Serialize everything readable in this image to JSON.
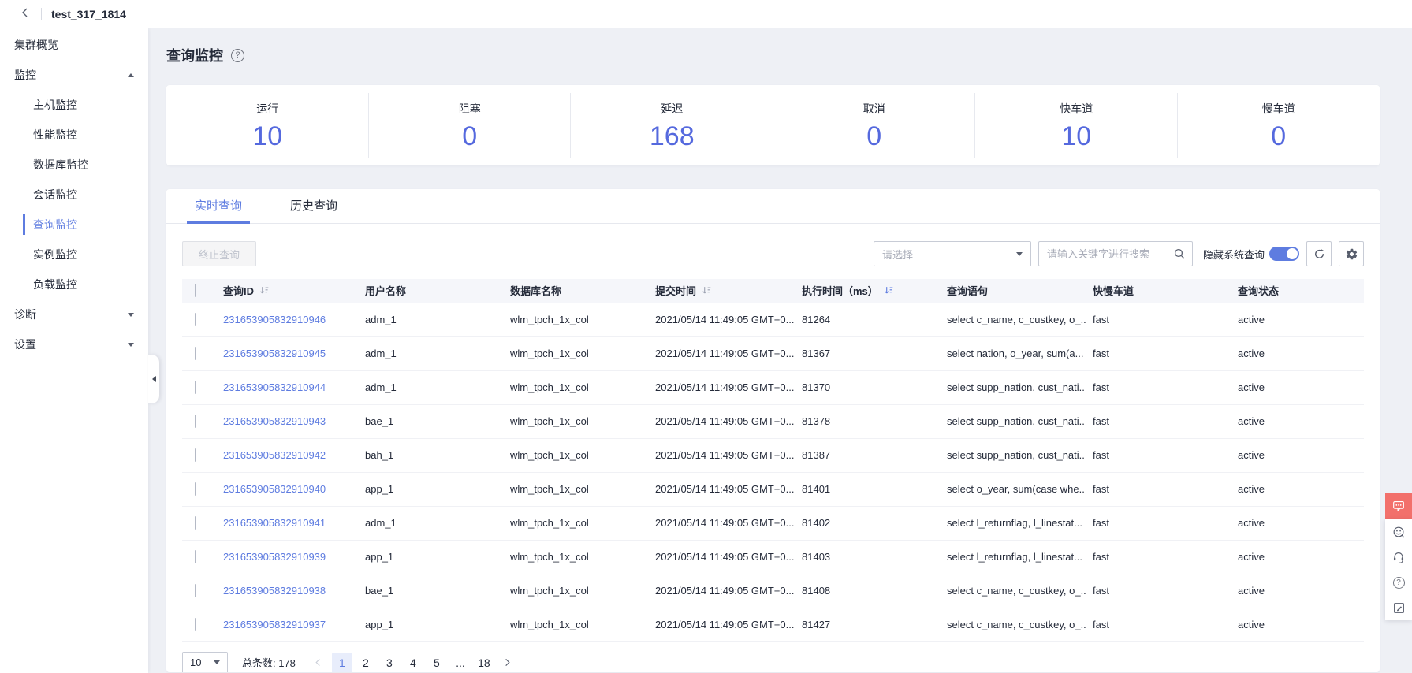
{
  "topbar": {
    "title": "test_317_1814"
  },
  "sidebar": {
    "overview": {
      "key": "cluster-overview",
      "label": "集群概览"
    },
    "groups": [
      {
        "key": "monitoring",
        "label": "监控",
        "expanded": true,
        "children": [
          {
            "key": "host-monitoring",
            "label": "主机监控",
            "active": false
          },
          {
            "key": "performance-monitoring",
            "label": "性能监控",
            "active": false
          },
          {
            "key": "database-monitoring",
            "label": "数据库监控",
            "active": false
          },
          {
            "key": "session-monitoring",
            "label": "会话监控",
            "active": false
          },
          {
            "key": "query-monitoring",
            "label": "查询监控",
            "active": true
          },
          {
            "key": "instance-monitoring",
            "label": "实例监控",
            "active": false
          },
          {
            "key": "load-monitoring",
            "label": "负载监控",
            "active": false
          }
        ]
      },
      {
        "key": "diagnosis",
        "label": "诊断",
        "expanded": false,
        "children": []
      },
      {
        "key": "settings",
        "label": "设置",
        "expanded": false,
        "children": []
      }
    ]
  },
  "page": {
    "title": "查询监控",
    "help_glyph": "?"
  },
  "stats": [
    {
      "key": "running",
      "label": "运行",
      "value": "10"
    },
    {
      "key": "blocked",
      "label": "阻塞",
      "value": "0"
    },
    {
      "key": "delayed",
      "label": "延迟",
      "value": "168"
    },
    {
      "key": "canceled",
      "label": "取消",
      "value": "0"
    },
    {
      "key": "fast-lane",
      "label": "快车道",
      "value": "10"
    },
    {
      "key": "slow-lane",
      "label": "慢车道",
      "value": "0"
    }
  ],
  "tabs": [
    {
      "key": "realtime-query",
      "label": "实时查询",
      "active": true
    },
    {
      "key": "history-query",
      "label": "历史查询",
      "active": false
    }
  ],
  "toolbar": {
    "terminate_button": "终止查询",
    "filter_placeholder": "请选择",
    "search_placeholder": "请输入关键字进行搜索",
    "hide_system_label": "隐藏系统查询",
    "hide_system_on": true
  },
  "table": {
    "columns": [
      {
        "key": "query-id",
        "label": "查询ID",
        "sortable": true,
        "sort_active": false
      },
      {
        "key": "user-name",
        "label": "用户名称",
        "sortable": false
      },
      {
        "key": "database-name",
        "label": "数据库名称",
        "sortable": false
      },
      {
        "key": "submit-time",
        "label": "提交时间",
        "sortable": true,
        "sort_active": false
      },
      {
        "key": "execution-time",
        "label": "执行时间（ms）",
        "sortable": true,
        "sort_active": true
      },
      {
        "key": "query-statement",
        "label": "查询语句",
        "sortable": false
      },
      {
        "key": "lane",
        "label": "快慢车道",
        "sortable": false
      },
      {
        "key": "query-status",
        "label": "查询状态",
        "sortable": false
      }
    ],
    "rows": [
      {
        "id": "231653905832910946",
        "user": "adm_1",
        "db": "wlm_tpch_1x_col",
        "submitted": "2021/05/14 11:49:05 GMT+0...",
        "exec_ms": "81264",
        "statement": "select c_name, c_custkey, o_...",
        "lane": "fast",
        "status": "active"
      },
      {
        "id": "231653905832910945",
        "user": "adm_1",
        "db": "wlm_tpch_1x_col",
        "submitted": "2021/05/14 11:49:05 GMT+0...",
        "exec_ms": "81367",
        "statement": "select nation, o_year, sum(a...",
        "lane": "fast",
        "status": "active"
      },
      {
        "id": "231653905832910944",
        "user": "adm_1",
        "db": "wlm_tpch_1x_col",
        "submitted": "2021/05/14 11:49:05 GMT+0...",
        "exec_ms": "81370",
        "statement": "select supp_nation, cust_nati...",
        "lane": "fast",
        "status": "active"
      },
      {
        "id": "231653905832910943",
        "user": "bae_1",
        "db": "wlm_tpch_1x_col",
        "submitted": "2021/05/14 11:49:05 GMT+0...",
        "exec_ms": "81378",
        "statement": "select supp_nation, cust_nati...",
        "lane": "fast",
        "status": "active"
      },
      {
        "id": "231653905832910942",
        "user": "bah_1",
        "db": "wlm_tpch_1x_col",
        "submitted": "2021/05/14 11:49:05 GMT+0...",
        "exec_ms": "81387",
        "statement": "select supp_nation, cust_nati...",
        "lane": "fast",
        "status": "active"
      },
      {
        "id": "231653905832910940",
        "user": "app_1",
        "db": "wlm_tpch_1x_col",
        "submitted": "2021/05/14 11:49:05 GMT+0...",
        "exec_ms": "81401",
        "statement": "select o_year, sum(case whe...",
        "lane": "fast",
        "status": "active"
      },
      {
        "id": "231653905832910941",
        "user": "adm_1",
        "db": "wlm_tpch_1x_col",
        "submitted": "2021/05/14 11:49:05 GMT+0...",
        "exec_ms": "81402",
        "statement": "select l_returnflag, l_linestat...",
        "lane": "fast",
        "status": "active"
      },
      {
        "id": "231653905832910939",
        "user": "app_1",
        "db": "wlm_tpch_1x_col",
        "submitted": "2021/05/14 11:49:05 GMT+0...",
        "exec_ms": "81403",
        "statement": "select l_returnflag, l_linestat...",
        "lane": "fast",
        "status": "active"
      },
      {
        "id": "231653905832910938",
        "user": "bae_1",
        "db": "wlm_tpch_1x_col",
        "submitted": "2021/05/14 11:49:05 GMT+0...",
        "exec_ms": "81408",
        "statement": "select c_name, c_custkey, o_...",
        "lane": "fast",
        "status": "active"
      },
      {
        "id": "231653905832910937",
        "user": "app_1",
        "db": "wlm_tpch_1x_col",
        "submitted": "2021/05/14 11:49:05 GMT+0...",
        "exec_ms": "81427",
        "statement": "select c_name, c_custkey, o_...",
        "lane": "fast",
        "status": "active"
      }
    ]
  },
  "pagination": {
    "page_size": "10",
    "total_label": "总条数: 178",
    "pages": [
      "1",
      "2",
      "3",
      "4",
      "5",
      "...",
      "18"
    ],
    "current_page": "1"
  },
  "colors": {
    "primary": "#5e7ce0",
    "stat_number": "#5569de",
    "float_button": "#f2706b",
    "link": "#5e7ce0"
  }
}
